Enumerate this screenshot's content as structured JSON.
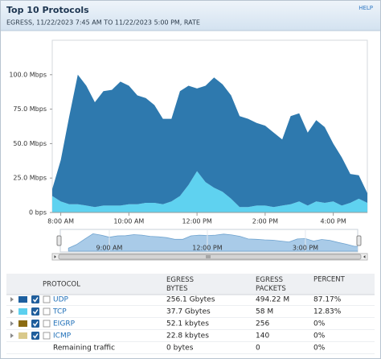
{
  "header": {
    "title": "Top 10 Protocols",
    "help": "HELP",
    "subtitle": "EGRESS, 11/22/2023 7:45 AM TO 11/22/2023 5:00 PM, RATE"
  },
  "chart_data": {
    "type": "area",
    "stacked": true,
    "x": [
      7.75,
      8,
      8.25,
      8.5,
      8.75,
      9,
      9.25,
      9.5,
      9.75,
      10,
      10.25,
      10.5,
      10.75,
      11,
      11.25,
      11.5,
      11.75,
      12,
      12.25,
      12.5,
      12.75,
      13,
      13.25,
      13.5,
      13.75,
      14,
      14.25,
      14.5,
      14.75,
      15,
      15.25,
      15.5,
      15.75,
      16,
      16.25,
      16.5,
      16.75,
      17
    ],
    "xlim": [
      7.75,
      17
    ],
    "xticks": [
      {
        "value": 8,
        "label": "8:00 AM"
      },
      {
        "value": 10,
        "label": "10:00 AM"
      },
      {
        "value": 12,
        "label": "12:00 PM"
      },
      {
        "value": 14,
        "label": "2:00 PM"
      },
      {
        "value": 16,
        "label": "4:00 PM"
      }
    ],
    "ylim": [
      0,
      125
    ],
    "yticks": [
      {
        "value": 0,
        "label": "0 bps"
      },
      {
        "value": 25,
        "label": "25.0 Mbps"
      },
      {
        "value": 50,
        "label": "50.0 Mbps"
      },
      {
        "value": 75,
        "label": "75.0 Mbps"
      },
      {
        "value": 100,
        "label": "100.0 Mbps"
      }
    ],
    "series": [
      {
        "name": "UDP",
        "color": "#2e79ae",
        "values": [
          5,
          30,
          64,
          94,
          87,
          76,
          83,
          84,
          90,
          86,
          79,
          76,
          71,
          62,
          60,
          76,
          72,
          60,
          70,
          80,
          78,
          75,
          66,
          64,
          60,
          58,
          54,
          48,
          64,
          64,
          53,
          59,
          55,
          42,
          35,
          21,
          17,
          7
        ]
      },
      {
        "name": "TCP",
        "color": "#5fd2f0",
        "values": [
          12,
          8,
          6,
          6,
          5,
          4,
          5,
          5,
          5,
          6,
          6,
          7,
          7,
          6,
          8,
          12,
          20,
          30,
          22,
          18,
          15,
          10,
          4,
          4,
          5,
          5,
          4,
          5,
          6,
          8,
          5,
          8,
          7,
          8,
          5,
          7,
          10,
          7
        ]
      }
    ],
    "navigator": {
      "xlim": [
        7.5,
        16.6
      ],
      "xticks": [
        {
          "value": 9,
          "label": "9:00 AM"
        },
        {
          "value": 12,
          "label": "12:00 PM"
        },
        {
          "value": 15,
          "label": "3:00 PM"
        }
      ],
      "color": "#a9cbe8"
    }
  },
  "table": {
    "columns": [
      "PROTOCOL",
      "EGRESS BYTES",
      "EGRESS PACKETS",
      "PERCENT"
    ],
    "rows": [
      {
        "name": "UDP",
        "color": "#1d5f9f",
        "bytes": "256.1 Gbytes",
        "packets": "494.22 M",
        "percent": "87.17%"
      },
      {
        "name": "TCP",
        "color": "#5cd0ef",
        "bytes": "37.7 Gbytes",
        "packets": "58 M",
        "percent": "12.83%"
      },
      {
        "name": "EIGRP",
        "color": "#8b6b12",
        "bytes": "52.1 kbytes",
        "packets": "256",
        "percent": "0%"
      },
      {
        "name": "ICMP",
        "color": "#d9c98b",
        "bytes": "22.8 kbytes",
        "packets": "140",
        "percent": "0%"
      },
      {
        "name": "Remaining traffic",
        "bytes": "0 bytes",
        "packets": "0",
        "percent": "0%"
      }
    ]
  }
}
